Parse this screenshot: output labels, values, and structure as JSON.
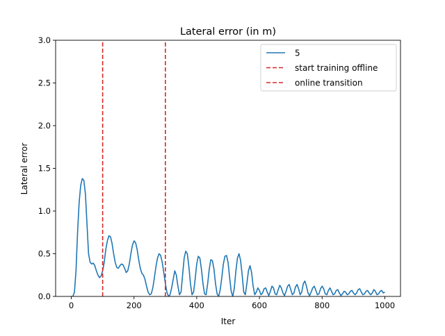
{
  "chart_data": {
    "type": "line",
    "title": "Lateral error (in m)",
    "xlabel": "Iter",
    "ylabel": "Lateral error",
    "xlim": [
      -50,
      1050
    ],
    "ylim": [
      0,
      3.0
    ],
    "xticks": [
      0,
      200,
      400,
      600,
      800,
      1000
    ],
    "xtick_labels": [
      "0",
      "200",
      "400",
      "600",
      "800",
      "1000"
    ],
    "yticks": [
      0,
      0.5,
      1.0,
      1.5,
      2.0,
      2.5,
      3.0
    ],
    "ytick_labels": [
      "0.0",
      "0.5",
      "1.0",
      "1.5",
      "2.0",
      "2.5",
      "3.0"
    ],
    "grid": false,
    "legend_position": "top-right",
    "series": [
      {
        "name": "5",
        "color": "#1f77b4",
        "x": [
          0,
          5,
          10,
          15,
          20,
          25,
          30,
          35,
          40,
          45,
          50,
          55,
          60,
          65,
          70,
          75,
          80,
          85,
          90,
          95,
          100,
          105,
          110,
          115,
          120,
          125,
          130,
          135,
          140,
          145,
          150,
          155,
          160,
          165,
          170,
          175,
          180,
          185,
          190,
          195,
          200,
          205,
          210,
          215,
          220,
          225,
          230,
          235,
          240,
          245,
          250,
          255,
          260,
          265,
          270,
          275,
          280,
          285,
          290,
          295,
          300,
          305,
          310,
          315,
          320,
          325,
          330,
          335,
          340,
          345,
          350,
          355,
          360,
          365,
          370,
          375,
          380,
          385,
          390,
          395,
          400,
          405,
          410,
          415,
          420,
          425,
          430,
          435,
          440,
          445,
          450,
          455,
          460,
          465,
          470,
          475,
          480,
          485,
          490,
          495,
          500,
          505,
          510,
          515,
          520,
          525,
          530,
          535,
          540,
          545,
          550,
          555,
          560,
          565,
          570,
          575,
          580,
          585,
          590,
          595,
          600,
          605,
          610,
          615,
          620,
          625,
          630,
          635,
          640,
          645,
          650,
          655,
          660,
          665,
          670,
          675,
          680,
          685,
          690,
          695,
          700,
          705,
          710,
          715,
          720,
          725,
          730,
          735,
          740,
          745,
          750,
          755,
          760,
          765,
          770,
          775,
          780,
          785,
          790,
          795,
          800,
          805,
          810,
          815,
          820,
          825,
          830,
          835,
          840,
          845,
          850,
          855,
          860,
          865,
          870,
          875,
          880,
          885,
          890,
          895,
          900,
          905,
          910,
          915,
          920,
          925,
          930,
          935,
          940,
          945,
          950,
          955,
          960,
          965,
          970,
          975,
          980,
          985,
          990,
          995,
          1000
        ],
        "values": [
          0.0,
          0.0,
          0.05,
          0.3,
          0.75,
          1.1,
          1.3,
          1.38,
          1.36,
          1.2,
          0.85,
          0.5,
          0.4,
          0.38,
          0.39,
          0.36,
          0.3,
          0.25,
          0.22,
          0.24,
          0.3,
          0.4,
          0.55,
          0.65,
          0.71,
          0.7,
          0.62,
          0.5,
          0.4,
          0.34,
          0.33,
          0.36,
          0.38,
          0.37,
          0.33,
          0.28,
          0.3,
          0.38,
          0.5,
          0.6,
          0.65,
          0.63,
          0.55,
          0.43,
          0.33,
          0.27,
          0.25,
          0.2,
          0.12,
          0.05,
          0.02,
          0.03,
          0.1,
          0.22,
          0.35,
          0.45,
          0.5,
          0.48,
          0.4,
          0.28,
          0.15,
          0.05,
          0.0,
          0.02,
          0.1,
          0.2,
          0.3,
          0.25,
          0.12,
          0.02,
          0.05,
          0.25,
          0.45,
          0.53,
          0.5,
          0.35,
          0.15,
          0.02,
          0.05,
          0.2,
          0.38,
          0.47,
          0.45,
          0.32,
          0.15,
          0.03,
          0.02,
          0.15,
          0.32,
          0.43,
          0.42,
          0.32,
          0.15,
          0.03,
          0.0,
          0.08,
          0.22,
          0.38,
          0.47,
          0.48,
          0.4,
          0.22,
          0.06,
          0.0,
          0.1,
          0.3,
          0.45,
          0.5,
          0.42,
          0.25,
          0.05,
          0.02,
          0.15,
          0.3,
          0.36,
          0.28,
          0.12,
          0.02,
          0.05,
          0.1,
          0.07,
          0.02,
          0.04,
          0.09,
          0.1,
          0.05,
          0.01,
          0.06,
          0.12,
          0.1,
          0.03,
          0.02,
          0.08,
          0.13,
          0.1,
          0.04,
          0.01,
          0.06,
          0.12,
          0.14,
          0.08,
          0.02,
          0.04,
          0.11,
          0.14,
          0.09,
          0.02,
          0.05,
          0.15,
          0.18,
          0.12,
          0.04,
          0.01,
          0.05,
          0.1,
          0.12,
          0.07,
          0.02,
          0.03,
          0.09,
          0.12,
          0.09,
          0.03,
          0.02,
          0.07,
          0.1,
          0.06,
          0.02,
          0.03,
          0.07,
          0.08,
          0.04,
          0.01,
          0.03,
          0.06,
          0.05,
          0.02,
          0.03,
          0.06,
          0.07,
          0.04,
          0.02,
          0.04,
          0.08,
          0.09,
          0.05,
          0.02,
          0.03,
          0.06,
          0.07,
          0.04,
          0.02,
          0.04,
          0.08,
          0.06,
          0.02,
          0.03,
          0.06,
          0.07,
          0.04,
          0.05
        ]
      },
      {
        "name": "start training offline",
        "color": "#d62728",
        "style": "dashed",
        "x": [
          100,
          100
        ],
        "values": [
          0,
          3.0
        ]
      },
      {
        "name": "online transition",
        "color": "#d62728",
        "style": "dashed",
        "x": [
          300,
          300
        ],
        "values": [
          0,
          3.0
        ]
      }
    ]
  }
}
